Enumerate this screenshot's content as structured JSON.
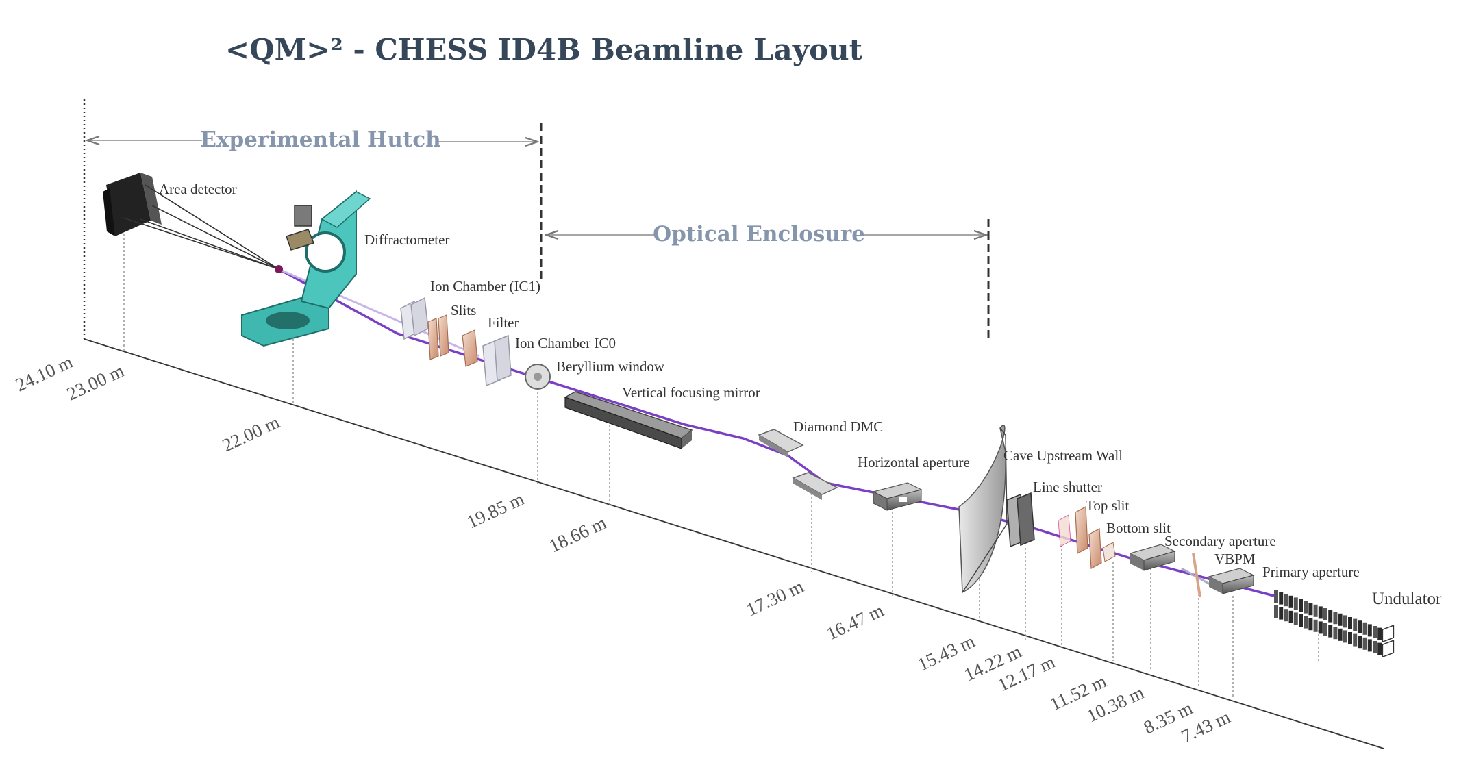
{
  "title": "<QM>² - CHESS ID4B Beamline Layout",
  "sections": {
    "experimental_hutch": "Experimental Hutch",
    "optical_enclosure": "Optical Enclosure"
  },
  "components": {
    "area_detector": "Area detector",
    "diffractometer": "Diffractometer",
    "ion_chamber_ic1": "Ion Chamber (IC1)",
    "slits": "Slits",
    "filter": "Filter",
    "ion_chamber_ic0": "Ion Chamber IC0",
    "beryllium_window": "Beryllium window",
    "vertical_focusing_mirror": "Vertical focusing mirror",
    "diamond_dmc": "Diamond DMC",
    "horizontal_aperture": "Horizontal aperture",
    "cave_upstream_wall": "Cave Upstream Wall",
    "line_shutter": "Line shutter",
    "top_slit": "Top slit",
    "bottom_slit": "Bottom slit",
    "secondary_aperture": "Secondary aperture",
    "vbpm": "VBPM",
    "primary_aperture": "Primary aperture",
    "undulator": "Undulator"
  },
  "distances": {
    "d_24_10": "24.10 m",
    "d_23_00": "23.00 m",
    "d_22_00": "22.00 m",
    "d_19_85": "19.85 m",
    "d_18_66": "18.66 m",
    "d_17_30": "17.30 m",
    "d_16_47": "16.47 m",
    "d_15_43": "15.43 m",
    "d_14_22": "14.22 m",
    "d_12_17": "12.17 m",
    "d_11_52": "11.52 m",
    "d_10_38": "10.38 m",
    "d_8_35": "8.35 m",
    "d_7_43": "7.43 m"
  },
  "colors": {
    "beam": "#7b3fc4",
    "diffractometer": "#3fb8b0",
    "title": "#37475a",
    "section": "#8595ab"
  }
}
